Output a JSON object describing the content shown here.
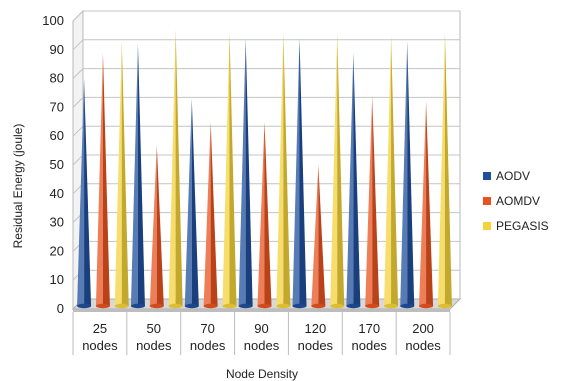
{
  "chart_data": {
    "type": "bar",
    "title": "",
    "xlabel": "Node Density",
    "ylabel": "Residual Energy (joule)",
    "categories": [
      [
        "25",
        "nodes"
      ],
      [
        "50",
        "nodes"
      ],
      [
        "70",
        "nodes"
      ],
      [
        "90",
        "nodes"
      ],
      [
        "120",
        "nodes"
      ],
      [
        "170",
        "nodes"
      ],
      [
        "200",
        "nodes"
      ]
    ],
    "series": [
      {
        "name": "AODV",
        "color": "#1f4f9c",
        "values": [
          80,
          92,
          73,
          94,
          94,
          89,
          93
        ]
      },
      {
        "name": "AOMDV",
        "color": "#e8531f",
        "values": [
          89,
          57,
          65,
          65,
          50,
          74,
          72
        ]
      },
      {
        "name": "PEGASIS",
        "color": "#f4d23a",
        "values": [
          93,
          97,
          96,
          96,
          96,
          95,
          96
        ]
      }
    ],
    "ylim": [
      0,
      100
    ],
    "yticks": [
      0,
      10,
      20,
      30,
      40,
      50,
      60,
      70,
      80,
      90,
      100
    ],
    "grid": true,
    "legend_position": "right",
    "bar_shape": "cone"
  }
}
